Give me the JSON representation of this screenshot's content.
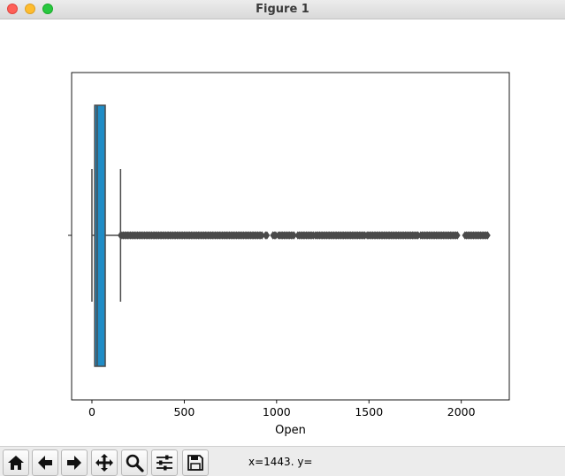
{
  "window": {
    "title": "Figure 1"
  },
  "toolbar": {
    "buttons": [
      {
        "name": "home-button",
        "icon": "home-icon"
      },
      {
        "name": "back-button",
        "icon": "arrow-left-icon"
      },
      {
        "name": "forward-button",
        "icon": "arrow-right-icon"
      },
      {
        "name": "pan-button",
        "icon": "move-icon"
      },
      {
        "name": "zoom-button",
        "icon": "magnifier-icon"
      },
      {
        "name": "configure-subplots-button",
        "icon": "sliders-icon"
      },
      {
        "name": "save-button",
        "icon": "floppy-disk-icon"
      }
    ],
    "coordinates": "x=1443. y="
  },
  "chart_data": {
    "type": "boxplot",
    "orientation": "horizontal",
    "xlabel": "Open",
    "xlim": [
      -110,
      2260
    ],
    "xticks": [
      0,
      500,
      1000,
      1500,
      2000
    ],
    "box": {
      "whisker_low": 0,
      "q1": 15,
      "median": 28,
      "q3": 72,
      "whisker_high": 155
    },
    "box_color": "#1f8cc6",
    "outlier_segments": [
      [
        155,
        925
      ],
      [
        940,
        955
      ],
      [
        980,
        1000
      ],
      [
        1010,
        1100
      ],
      [
        1115,
        1200
      ],
      [
        1210,
        1480
      ],
      [
        1490,
        1770
      ],
      [
        1780,
        1980
      ],
      [
        2020,
        2150
      ]
    ],
    "outlier_color": "#4a4a4a"
  }
}
